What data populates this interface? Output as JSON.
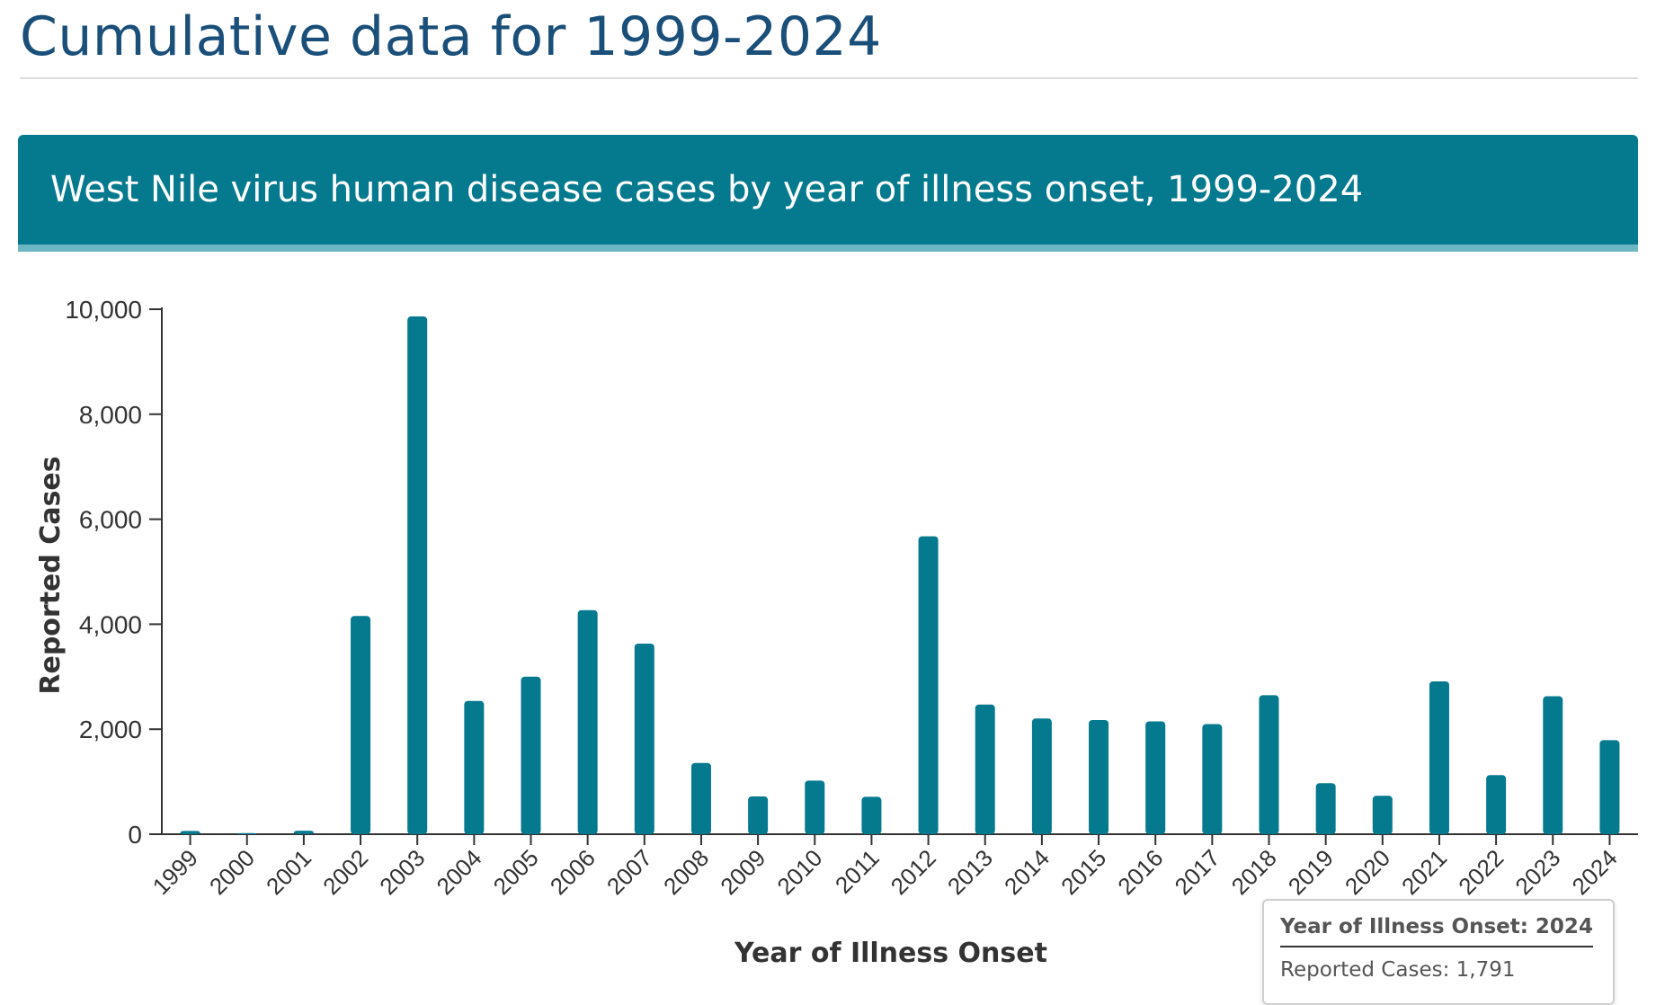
{
  "page": {
    "title": "Cumulative data for 1999-2024"
  },
  "chart_data": {
    "type": "bar",
    "title": "West Nile virus human disease cases by year of illness onset, 1999-2024",
    "xlabel": "Year of Illness Onset",
    "ylabel": "Reported Cases",
    "ylim": [
      0,
      10000
    ],
    "yticks": [
      "0",
      "2,000",
      "4,000",
      "6,000",
      "8,000",
      "10,000"
    ],
    "ytick_values": [
      0,
      2000,
      4000,
      6000,
      8000,
      10000
    ],
    "categories": [
      "1999",
      "2000",
      "2001",
      "2002",
      "2003",
      "2004",
      "2005",
      "2006",
      "2007",
      "2008",
      "2009",
      "2010",
      "2011",
      "2012",
      "2013",
      "2014",
      "2015",
      "2016",
      "2017",
      "2018",
      "2019",
      "2020",
      "2021",
      "2022",
      "2023",
      "2024"
    ],
    "values": [
      62,
      21,
      66,
      4156,
      9862,
      2539,
      3000,
      4269,
      3630,
      1356,
      720,
      1021,
      712,
      5674,
      2469,
      2205,
      2175,
      2149,
      2097,
      2647,
      971,
      731,
      2911,
      1126,
      2628,
      1791
    ],
    "bar_color": "#057a8f",
    "grid": false
  },
  "tooltip": {
    "title": "Year of Illness Onset: 2024",
    "line": "Reported Cases: 1,791"
  },
  "colors": {
    "header_bg": "#057a8f",
    "header_accent": "#6db6c3",
    "page_title": "#1a4f7a"
  }
}
